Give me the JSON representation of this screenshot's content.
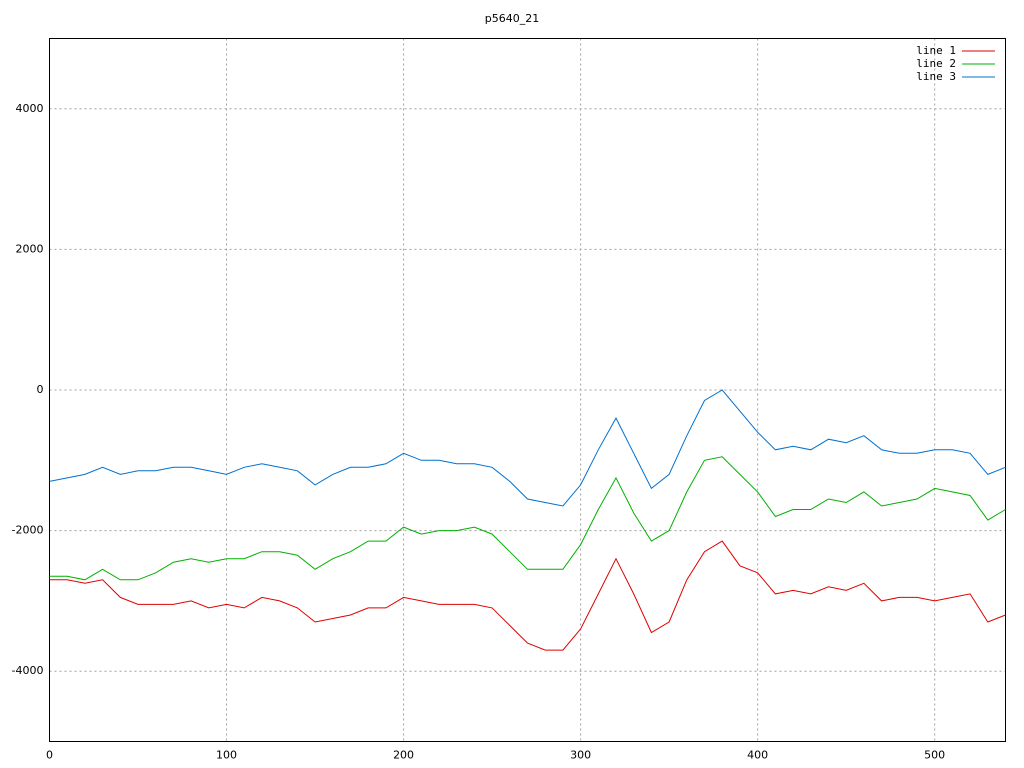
{
  "chart_data": {
    "type": "line",
    "title": "p5640_21",
    "x": [
      0,
      10,
      20,
      30,
      40,
      50,
      60,
      70,
      80,
      90,
      100,
      110,
      120,
      130,
      140,
      150,
      160,
      170,
      180,
      190,
      200,
      210,
      220,
      230,
      240,
      250,
      260,
      270,
      280,
      290,
      300,
      310,
      320,
      330,
      340,
      350,
      360,
      370,
      380,
      390,
      400,
      410,
      420,
      430,
      440,
      450,
      460,
      470,
      480,
      490,
      500,
      510,
      520,
      530,
      540
    ],
    "series": [
      {
        "name": "line 1",
        "color": "#e00000",
        "values": [
          -2700,
          -2700,
          -2750,
          -2700,
          -2950,
          -3050,
          -3050,
          -3050,
          -3000,
          -3100,
          -3050,
          -3100,
          -2950,
          -3000,
          -3100,
          -3300,
          -3250,
          -3200,
          -3100,
          -3100,
          -2950,
          -3000,
          -3050,
          -3050,
          -3050,
          -3100,
          -3350,
          -3600,
          -3700,
          -3700,
          -3400,
          -2900,
          -2400,
          -2900,
          -3450,
          -3300,
          -2700,
          -2300,
          -2150,
          -2500,
          -2600,
          -2900,
          -2850,
          -2900,
          -2800,
          -2850,
          -2750,
          -3000,
          -2950,
          -2950,
          -3000,
          -2950,
          -2900,
          -3300,
          -3200
        ]
      },
      {
        "name": "line 2",
        "color": "#00b000",
        "values": [
          -2650,
          -2650,
          -2700,
          -2550,
          -2700,
          -2700,
          -2600,
          -2450,
          -2400,
          -2450,
          -2400,
          -2400,
          -2300,
          -2300,
          -2350,
          -2550,
          -2400,
          -2300,
          -2150,
          -2150,
          -1950,
          -2050,
          -2000,
          -2000,
          -1950,
          -2050,
          -2300,
          -2550,
          -2550,
          -2550,
          -2200,
          -1700,
          -1250,
          -1750,
          -2150,
          -2000,
          -1450,
          -1000,
          -950,
          -1200,
          -1450,
          -1800,
          -1700,
          -1700,
          -1550,
          -1600,
          -1450,
          -1650,
          -1600,
          -1550,
          -1400,
          -1450,
          -1500,
          -1850,
          -1700
        ]
      },
      {
        "name": "line 3",
        "color": "#0070d0",
        "values": [
          -1300,
          -1250,
          -1200,
          -1100,
          -1200,
          -1150,
          -1150,
          -1100,
          -1100,
          -1150,
          -1200,
          -1100,
          -1050,
          -1100,
          -1150,
          -1350,
          -1200,
          -1100,
          -1100,
          -1050,
          -900,
          -1000,
          -1000,
          -1050,
          -1050,
          -1100,
          -1300,
          -1550,
          -1600,
          -1650,
          -1350,
          -850,
          -400,
          -900,
          -1400,
          -1200,
          -650,
          -150,
          0,
          -300,
          -600,
          -850,
          -800,
          -850,
          -700,
          -750,
          -650,
          -850,
          -900,
          -900,
          -850,
          -850,
          -900,
          -1200,
          -1100
        ]
      }
    ],
    "xlim": [
      0,
      540
    ],
    "ylim": [
      -5000,
      5000
    ],
    "xticks": [
      0,
      100,
      200,
      300,
      400,
      500
    ],
    "yticks": [
      -4000,
      -2000,
      0,
      2000,
      4000
    ],
    "grid": true,
    "legend": "top-right"
  }
}
